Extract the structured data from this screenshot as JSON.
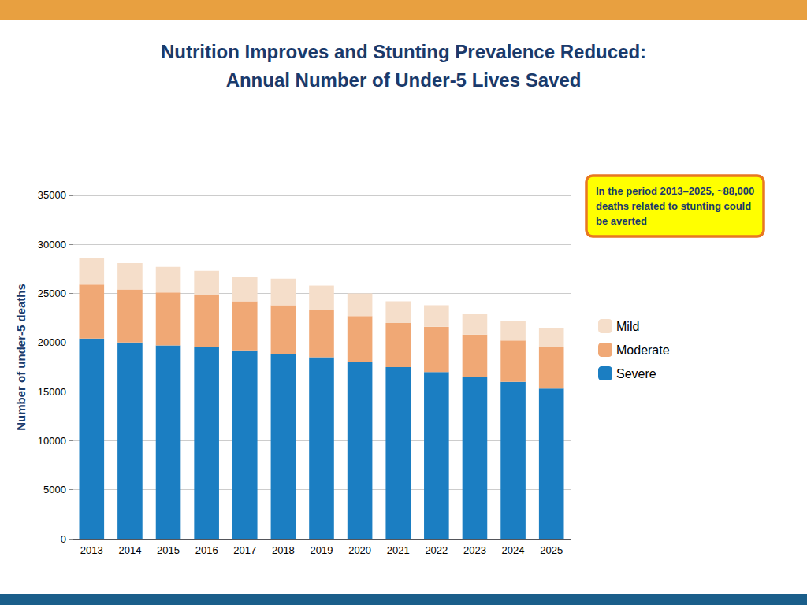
{
  "chart_data": {
    "type": "bar",
    "title": "Nutrition Improves and Stunting Prevalence Reduced:",
    "subtitle": "Annual Number of Under-5 Lives Saved",
    "ylabel": "Number of under-5 deaths",
    "categories": [
      "2013",
      "2014",
      "2015",
      "2016",
      "2017",
      "2018",
      "2019",
      "2020",
      "2021",
      "2022",
      "2023",
      "2024",
      "2025"
    ],
    "series": [
      {
        "name": "Severe",
        "color": "#1b7ec2",
        "values": [
          20400,
          20000,
          19700,
          19500,
          19200,
          18800,
          18500,
          18000,
          17500,
          17000,
          16500,
          16000,
          15300
        ]
      },
      {
        "name": "Moderate",
        "color": "#f0a875",
        "values": [
          5500,
          5400,
          5400,
          5300,
          5000,
          5000,
          4800,
          4700,
          4500,
          4600,
          4300,
          4200,
          4200
        ]
      },
      {
        "name": "Mild",
        "color": "#f5deca",
        "values": [
          2700,
          2700,
          2600,
          2500,
          2500,
          2700,
          2500,
          2300,
          2200,
          2200,
          2100,
          2000,
          2000
        ]
      }
    ],
    "stacked": true,
    "ylim": [
      0,
      37000
    ],
    "yticks": [
      0,
      5000,
      10000,
      15000,
      20000,
      25000,
      30000,
      35000
    ],
    "grid": true,
    "legend": "right",
    "annotation": "In the period 2013–2025, ~88,000\ndeaths related to stunting could\nbe averted"
  }
}
